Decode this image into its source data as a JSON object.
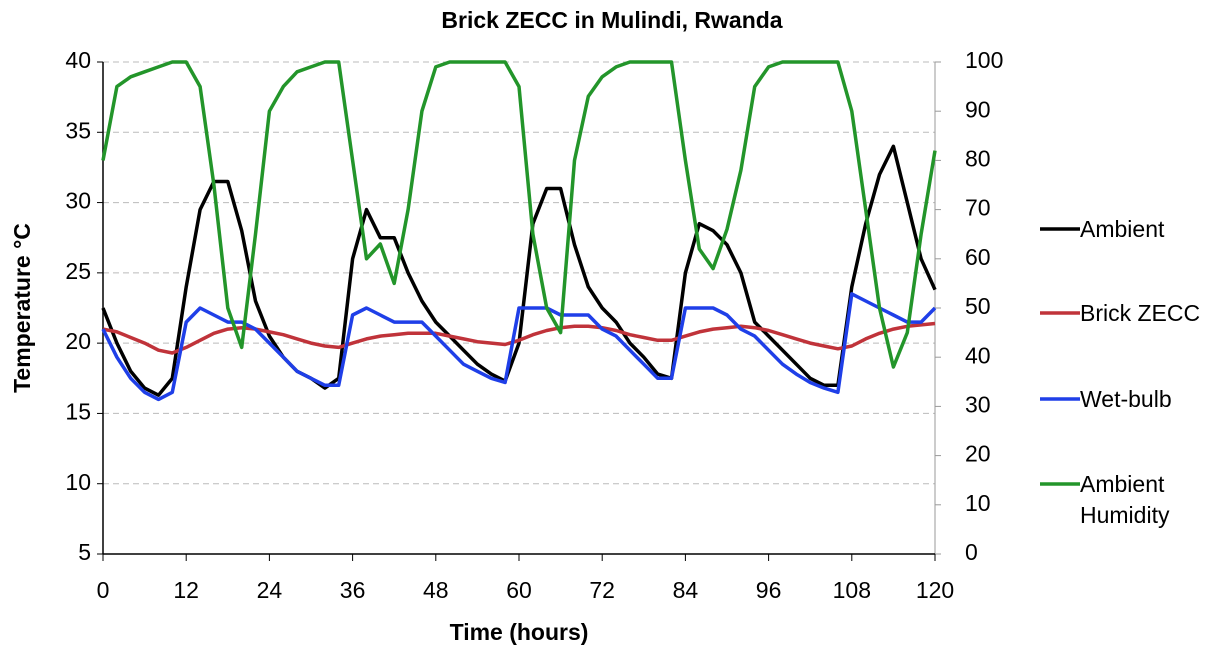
{
  "chart_data": {
    "type": "line",
    "title": "Brick ZECC in Mulindi, Rwanda",
    "xlabel": "Time (hours)",
    "ylabel": "Temperature  °C",
    "x": [
      0,
      2,
      4,
      6,
      8,
      10,
      12,
      14,
      16,
      18,
      20,
      22,
      24,
      26,
      28,
      30,
      32,
      34,
      36,
      38,
      40,
      42,
      44,
      46,
      48,
      50,
      52,
      54,
      56,
      58,
      60,
      62,
      64,
      66,
      68,
      70,
      72,
      74,
      76,
      78,
      80,
      82,
      84,
      86,
      88,
      90,
      92,
      94,
      96,
      98,
      100,
      102,
      104,
      106,
      108,
      110,
      112,
      114,
      116,
      118,
      120
    ],
    "xlim": [
      0,
      120
    ],
    "xticks": [
      0,
      12,
      24,
      36,
      48,
      60,
      72,
      84,
      96,
      108,
      120
    ],
    "ylim": [
      5,
      40
    ],
    "yticks": [
      5,
      10,
      15,
      20,
      25,
      30,
      35,
      40
    ],
    "y2lim": [
      0,
      100
    ],
    "y2ticks": [
      0,
      10,
      20,
      30,
      40,
      50,
      60,
      70,
      80,
      90,
      100
    ],
    "grid": true,
    "legend": "right",
    "series": [
      {
        "name": "Ambient",
        "color": "#000000",
        "values": [
          22.5,
          20,
          18,
          16.8,
          16.3,
          17.5,
          24,
          29.5,
          31.5,
          31.5,
          28,
          23,
          20.5,
          19,
          18,
          17.5,
          16.8,
          17.5,
          26,
          29.5,
          27.5,
          27.5,
          25,
          23,
          21.5,
          20.5,
          19.5,
          18.5,
          17.8,
          17.3,
          20,
          28.5,
          31,
          31,
          27,
          24,
          22.5,
          21.5,
          20,
          19,
          17.8,
          17.5,
          25,
          28.5,
          28,
          27,
          25,
          21.5,
          20.5,
          19.5,
          18.5,
          17.5,
          17,
          17,
          24,
          28.5,
          32,
          34,
          30,
          26,
          23.8
        ]
      },
      {
        "name": "Brick ZECC",
        "color": "#c0333a",
        "values": [
          21,
          20.8,
          20.4,
          20,
          19.5,
          19.3,
          19.7,
          20.2,
          20.7,
          21,
          21.1,
          21,
          20.8,
          20.6,
          20.3,
          20,
          19.8,
          19.7,
          20,
          20.3,
          20.5,
          20.6,
          20.7,
          20.7,
          20.7,
          20.5,
          20.3,
          20.1,
          20,
          19.9,
          20.2,
          20.6,
          20.9,
          21.1,
          21.2,
          21.2,
          21.1,
          20.9,
          20.6,
          20.4,
          20.2,
          20.2,
          20.5,
          20.8,
          21,
          21.1,
          21.2,
          21.1,
          20.9,
          20.6,
          20.3,
          20,
          19.8,
          19.6,
          19.8,
          20.3,
          20.7,
          21,
          21.2,
          21.3,
          21.4
        ]
      },
      {
        "name": "Wet-bulb",
        "color": "#1f3fe8",
        "values": [
          21,
          19,
          17.5,
          16.5,
          16,
          16.5,
          21.5,
          22.5,
          22,
          21.5,
          21.5,
          21,
          20,
          19,
          18,
          17.5,
          17,
          17,
          22,
          22.5,
          22,
          21.5,
          21.5,
          21.5,
          20.5,
          19.5,
          18.5,
          18,
          17.5,
          17.2,
          22.5,
          22.5,
          22.5,
          22,
          22,
          22,
          21,
          20.5,
          19.5,
          18.5,
          17.5,
          17.5,
          22.5,
          22.5,
          22.5,
          22,
          21,
          20.5,
          19.5,
          18.5,
          17.8,
          17.2,
          16.8,
          16.5,
          23.5,
          23,
          22.5,
          22,
          21.5,
          21.5,
          22.5
        ]
      },
      {
        "name": "Ambient Humidity",
        "color": "#23952a",
        "axis": "y2",
        "values": [
          80,
          95,
          97,
          98,
          99,
          100,
          100,
          95,
          75,
          50,
          42,
          65,
          90,
          95,
          98,
          99,
          100,
          100,
          80,
          60,
          63,
          55,
          70,
          90,
          99,
          100,
          100,
          100,
          100,
          100,
          95,
          65,
          50,
          45,
          80,
          93,
          97,
          99,
          100,
          100,
          100,
          100,
          80,
          62,
          58,
          66,
          78,
          95,
          99,
          100,
          100,
          100,
          100,
          100,
          90,
          70,
          50,
          38,
          45,
          65,
          82
        ]
      }
    ]
  }
}
